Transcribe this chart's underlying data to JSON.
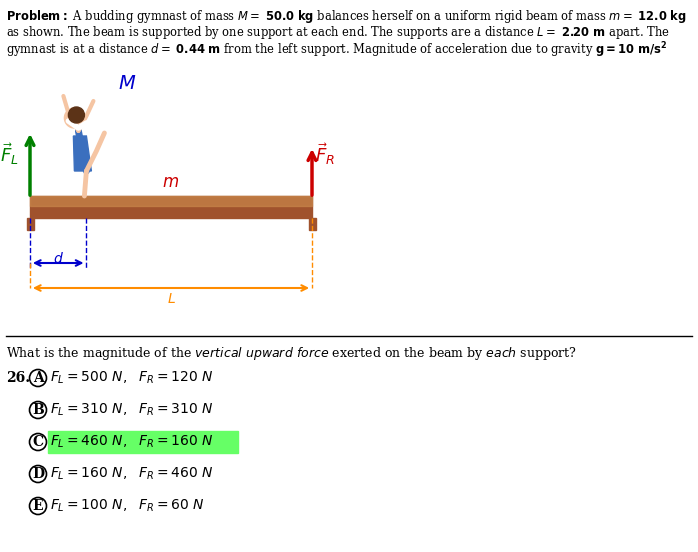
{
  "FL_color": "#008000",
  "FR_color": "#CC0000",
  "M_color": "#0000CC",
  "m_color": "#CC0000",
  "d_color": "#0000CC",
  "L_color": "#FF8C00",
  "beam_brown": "#A0522D",
  "beam_light": "#C8864A",
  "highlight_green": "#66FF66",
  "background": "#FFFFFF",
  "text_color": "#000000",
  "choice_texts": [
    "$F_L = 500\\ N,\\ \\ F_R = 120\\ N$",
    "$F_L = 310\\ N,\\ \\ F_R = 310\\ N$",
    "$F_L = 460\\ N,\\ \\ F_R = 160\\ N$",
    "$F_L = 160\\ N,\\ \\ F_R = 460\\ N$",
    "$F_L = 100\\ N,\\ \\ F_R = 60\\ N$"
  ],
  "choice_labels": [
    "A",
    "B",
    "C",
    "D",
    "E"
  ],
  "highlight_idx": 2
}
